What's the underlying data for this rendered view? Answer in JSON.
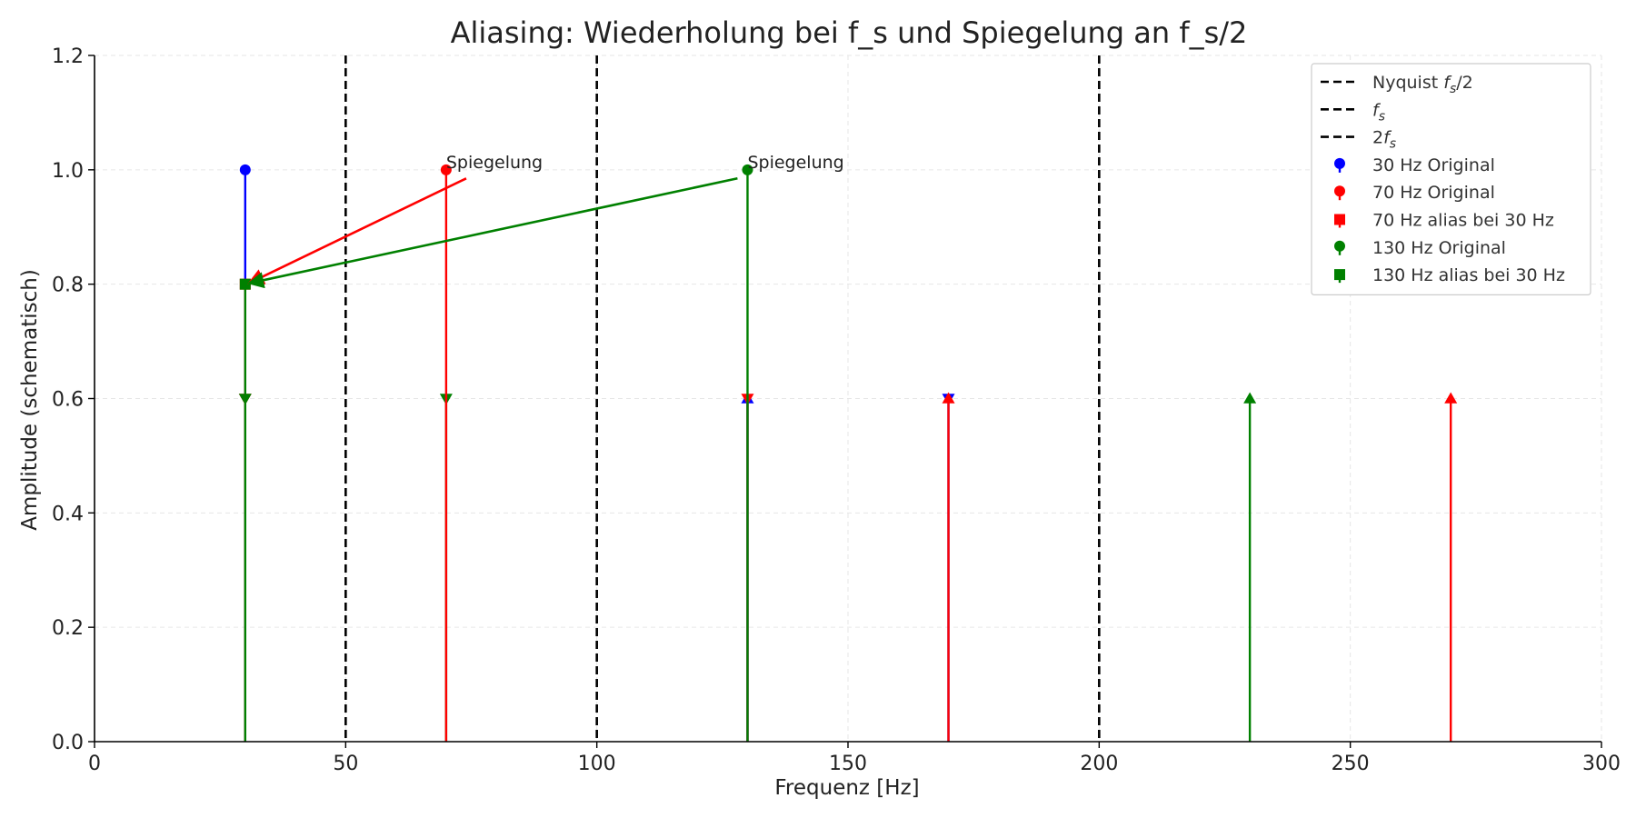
{
  "chart_data": {
    "type": "stem",
    "title": "Aliasing: Wiederholung bei f_s und Spiegelung an f_s/2",
    "xlabel": "Frequenz [Hz]",
    "ylabel": "Amplitude (schematisch)",
    "xlim": [
      0,
      300
    ],
    "ylim": [
      0,
      1.2
    ],
    "xticks": [
      0,
      50,
      100,
      150,
      200,
      250,
      300
    ],
    "xtick_labels": [
      "0",
      "50",
      "100",
      "150",
      "200",
      "250",
      "300"
    ],
    "yticks": [
      0.0,
      0.2,
      0.4,
      0.6,
      0.8,
      1.0,
      1.2
    ],
    "ytick_labels": [
      "0.0",
      "0.2",
      "0.4",
      "0.6",
      "0.8",
      "1.0",
      "1.2"
    ],
    "grid": true,
    "legend_position": "top-right",
    "vlines": [
      {
        "name": "Nyquist f_s/2",
        "x": 50,
        "style": "dashed",
        "color": "#000000"
      },
      {
        "name": "f_s",
        "x": 100,
        "style": "dashed",
        "color": "#000000"
      },
      {
        "name": "2f_s",
        "x": 200,
        "style": "dashed",
        "color": "#000000"
      }
    ],
    "series": [
      {
        "name": "30 Hz Original",
        "color": "#0000ff",
        "marker": "circle",
        "x": [
          30
        ],
        "y": [
          1.0
        ]
      },
      {
        "name": "70 Hz Original",
        "color": "#ff0000",
        "marker": "circle",
        "x": [
          70
        ],
        "y": [
          1.0
        ]
      },
      {
        "name": "70 Hz alias bei 30 Hz",
        "color": "#ff0000",
        "marker": "square",
        "x": [
          30
        ],
        "y": [
          0.8
        ]
      },
      {
        "name": "130 Hz Original",
        "color": "#008000",
        "marker": "circle",
        "x": [
          130
        ],
        "y": [
          1.0
        ]
      },
      {
        "name": "130 Hz alias bei 30 Hz",
        "color": "#008000",
        "marker": "square",
        "x": [
          30
        ],
        "y": [
          0.8
        ]
      }
    ],
    "image_lines": [
      {
        "x": 130,
        "y": 0.6,
        "color": "#0000ff",
        "marker": "triangle-up"
      },
      {
        "x": 170,
        "y": 0.6,
        "color": "#0000ff",
        "marker": "triangle-down"
      },
      {
        "x": 30,
        "y": 0.6,
        "color": "#ff0000",
        "marker": "triangle-down"
      },
      {
        "x": 130,
        "y": 0.6,
        "color": "#ff0000",
        "marker": "triangle-down"
      },
      {
        "x": 170,
        "y": 0.6,
        "color": "#ff0000",
        "marker": "triangle-up"
      },
      {
        "x": 270,
        "y": 0.6,
        "color": "#ff0000",
        "marker": "triangle-up"
      },
      {
        "x": 30,
        "y": 0.6,
        "color": "#008000",
        "marker": "triangle-down"
      },
      {
        "x": 70,
        "y": 0.6,
        "color": "#008000",
        "marker": "triangle-down"
      },
      {
        "x": 230,
        "y": 0.6,
        "color": "#008000",
        "marker": "triangle-up"
      }
    ],
    "annotations": [
      {
        "text": "Spiegelung",
        "x": 70,
        "y": 1.0,
        "arrow_from": [
          74,
          0.985
        ],
        "arrow_to": [
          30,
          0.8
        ],
        "color": "#ff0000"
      },
      {
        "text": "Spiegelung",
        "x": 130,
        "y": 1.0,
        "arrow_from": [
          128,
          0.985
        ],
        "arrow_to": [
          30,
          0.8
        ],
        "color": "#008000"
      }
    ]
  }
}
